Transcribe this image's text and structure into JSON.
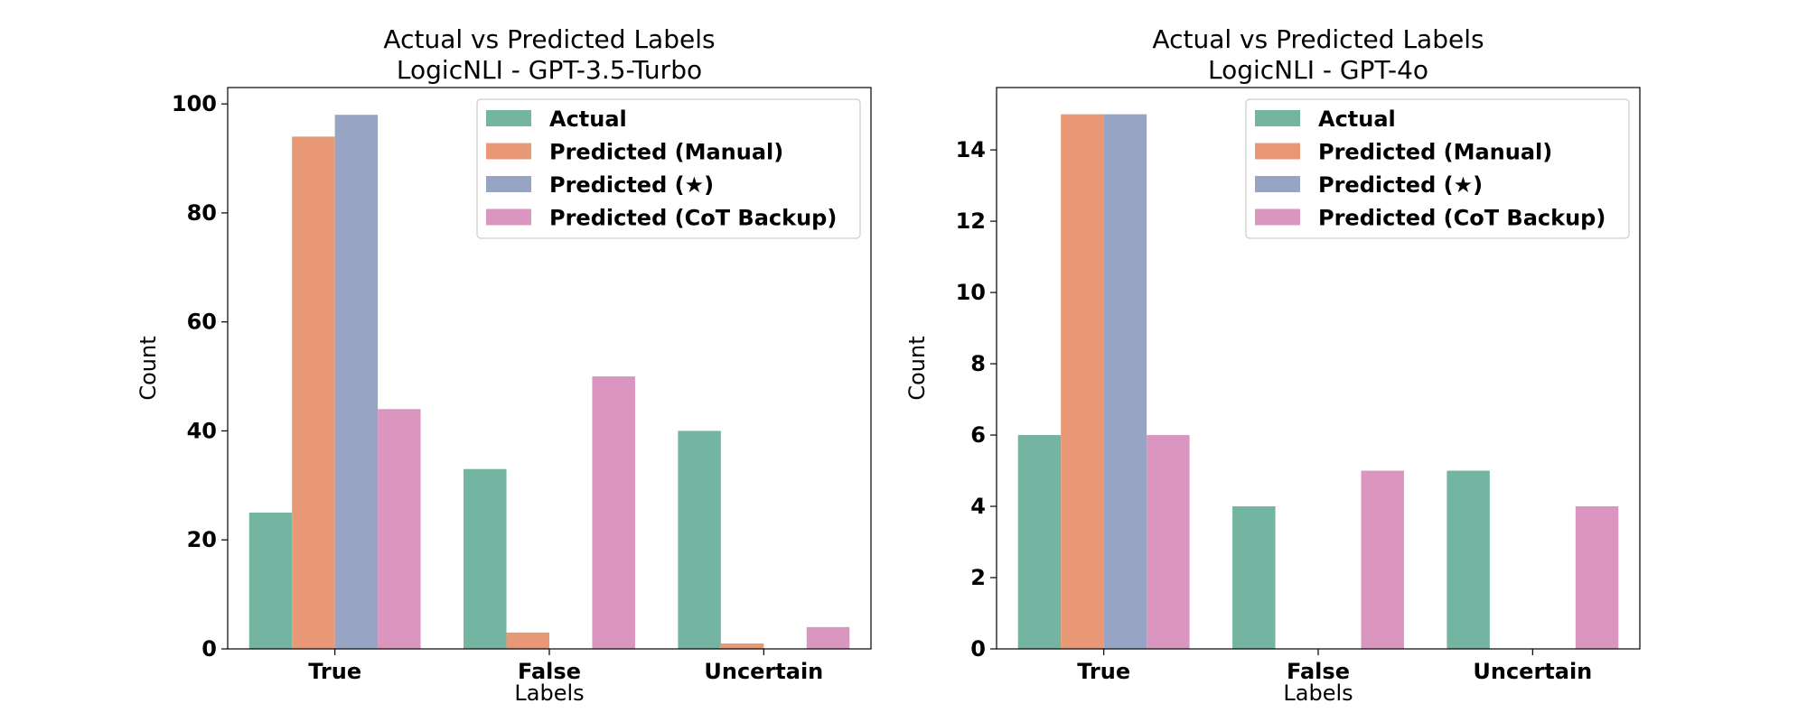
{
  "colors": {
    "Actual": "#73b5a0",
    "Predicted (Manual)": "#e89875",
    "Predicted (★)": "#97a4c4",
    "Predicted (CoT Backup)": "#db96c0"
  },
  "chart_data": [
    {
      "type": "bar",
      "title_line1": "Actual vs Predicted Labels",
      "title_line2": "LogicNLI - GPT-3.5-Turbo",
      "xlabel": "Labels",
      "ylabel": "Count",
      "categories": [
        "True",
        "False",
        "Uncertain"
      ],
      "ylim": [
        0,
        103
      ],
      "yticks": [
        0,
        20,
        40,
        60,
        80,
        100
      ],
      "legend_position": "top-right",
      "series": [
        {
          "name": "Actual",
          "values": [
            25,
            33,
            40
          ]
        },
        {
          "name": "Predicted (Manual)",
          "values": [
            94,
            3,
            1
          ]
        },
        {
          "name": "Predicted (★)",
          "values": [
            98,
            0,
            0
          ]
        },
        {
          "name": "Predicted (CoT Backup)",
          "values": [
            44,
            50,
            4
          ]
        }
      ]
    },
    {
      "type": "bar",
      "title_line1": "Actual vs Predicted Labels",
      "title_line2": "LogicNLI - GPT-4o",
      "xlabel": "Labels",
      "ylabel": "Count",
      "categories": [
        "True",
        "False",
        "Uncertain"
      ],
      "ylim": [
        0,
        15.75
      ],
      "yticks": [
        0,
        2,
        4,
        6,
        8,
        10,
        12,
        14
      ],
      "legend_position": "top-right",
      "series": [
        {
          "name": "Actual",
          "values": [
            6,
            4,
            5
          ]
        },
        {
          "name": "Predicted (Manual)",
          "values": [
            15,
            0,
            0
          ]
        },
        {
          "name": "Predicted (★)",
          "values": [
            15,
            0,
            0
          ]
        },
        {
          "name": "Predicted (CoT Backup)",
          "values": [
            6,
            5,
            4
          ]
        }
      ]
    }
  ]
}
